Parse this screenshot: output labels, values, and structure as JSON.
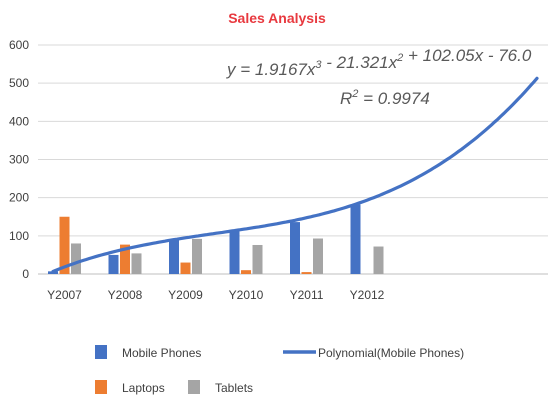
{
  "chart_data": {
    "type": "bar",
    "title": "Sales Analysis",
    "categories": [
      "Y2007",
      "Y2008",
      "Y2009",
      "Y2010",
      "Y2011",
      "Y2012"
    ],
    "ylim": [
      0,
      600
    ],
    "yticks": [
      0,
      100,
      200,
      300,
      400,
      500,
      600
    ],
    "grid": true,
    "legend_position": "bottom",
    "series": [
      {
        "name": "Mobile Phones",
        "values": [
          7,
          50,
          91,
          112,
          136,
          182
        ],
        "color": "#4472c4"
      },
      {
        "name": "Laptops",
        "values": [
          150,
          77,
          30,
          10,
          5,
          0
        ],
        "color": "#ed7d31"
      },
      {
        "name": "Tablets",
        "values": [
          80,
          54,
          92,
          76,
          93,
          72
        ],
        "color": "#a5a5a5"
      }
    ],
    "trendline": {
      "name": "Polynomial(Mobile Phones)",
      "series": "Mobile Phones",
      "type": "polynomial",
      "order": 3,
      "coefficients": [
        1.9167,
        -21.321,
        102.05,
        -76.0
      ],
      "forward_periods": 3,
      "color": "#4472c4",
      "equation_label": "y = 1.9167x",
      "equation_parts": [
        {
          "text": "y = 1.9167x",
          "sup": ""
        },
        {
          "text": "3",
          "sup": "true"
        },
        {
          "text": " - 21.321x",
          "sup": ""
        },
        {
          "text": "2",
          "sup": "true"
        },
        {
          "text": " + 102.05x - 76.0",
          "sup": ""
        }
      ],
      "r_squared_prefix": "R",
      "r_squared_sup": "2",
      "r_squared_value": " = 0.9974"
    }
  }
}
